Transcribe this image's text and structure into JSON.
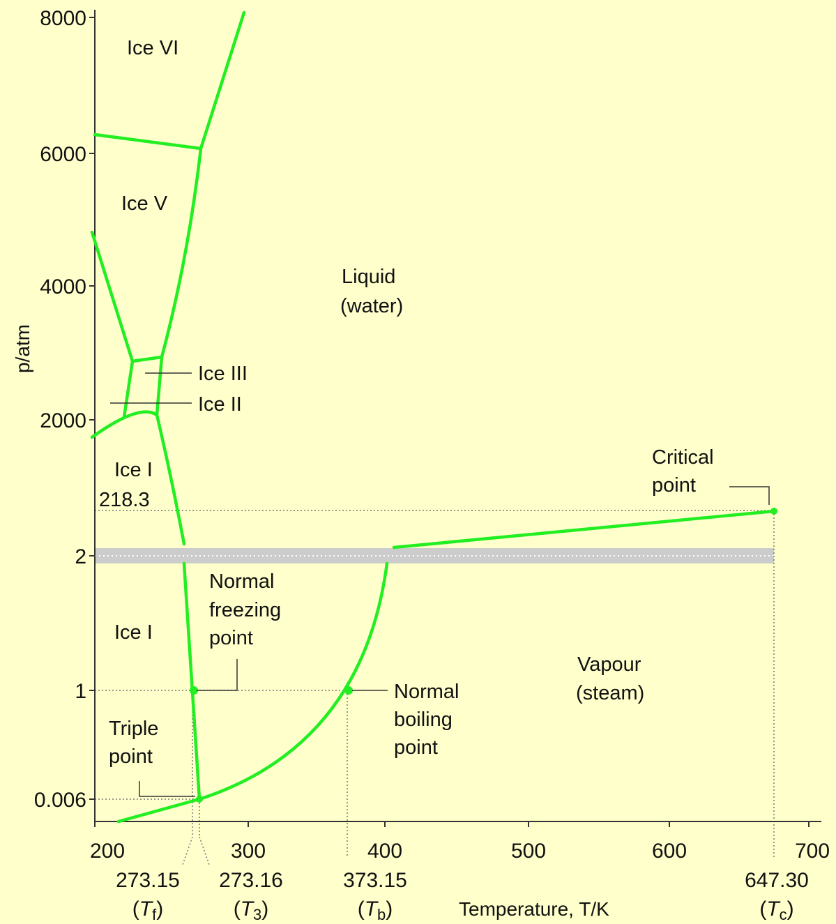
{
  "colors": {
    "background": "#ffffcc",
    "curve": "#22ee22",
    "axis": "#333333",
    "band": "#cccccc",
    "guide": "#777777"
  },
  "axes": {
    "x_title": "Temperature, T/K",
    "y_title": "p/atm",
    "x_ticks": [
      "200",
      "300",
      "400",
      "500",
      "600",
      "700"
    ],
    "y_ticks": [
      "8000",
      "6000",
      "4000",
      "2000",
      "2",
      "1",
      "0.006"
    ]
  },
  "regions": {
    "ice_vi": "Ice VI",
    "ice_v": "Ice V",
    "liquid_1": "Liquid",
    "liquid_2": "(water)",
    "ice_iii": "Ice III",
    "ice_ii": "Ice II",
    "ice_i_upper": "Ice I",
    "ice_i_lower": "Ice I",
    "vapour_1": "Vapour",
    "vapour_2": "(steam)",
    "value_2183": "218.3"
  },
  "annotations": {
    "critical_1": "Critical",
    "critical_2": "point",
    "freezing_1": "Normal",
    "freezing_2": "freezing",
    "freezing_3": "point",
    "boiling_1": "Normal",
    "boiling_2": "boiling",
    "boiling_3": "point",
    "triple_1": "Triple",
    "triple_2": "point"
  },
  "special_temperatures": {
    "tf_value": "273.15",
    "tf_sym": "T",
    "tf_sub": "f",
    "t3_value": "273.16",
    "t3_sym": "T",
    "t3_sub": "3",
    "tb_value": "373.15",
    "tb_sym": "T",
    "tb_sub": "b",
    "tc_value": "647.30",
    "tc_sym": "T",
    "tc_sub": "c"
  }
}
